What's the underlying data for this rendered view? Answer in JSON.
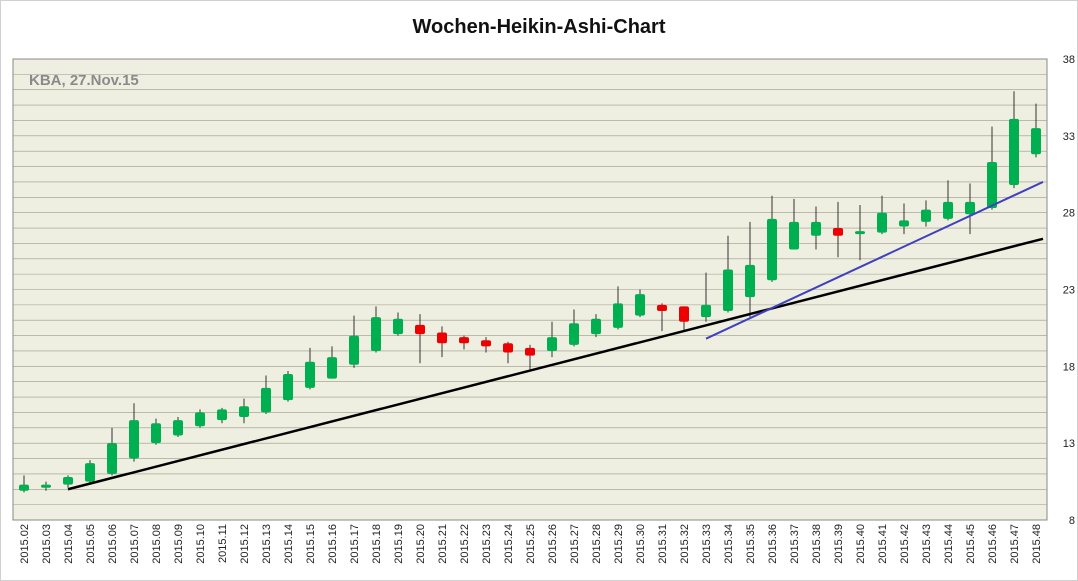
{
  "chart_data": {
    "type": "candlestick",
    "title": "Wochen-Heikin-Ashi-Chart",
    "annotation": "KBA, 27.Nov.15",
    "ylim": [
      8,
      38
    ],
    "yticks": [
      8,
      13,
      18,
      23,
      28,
      33,
      38
    ],
    "y_axis_side": "right",
    "grid": "horizontal",
    "colors": {
      "up": "#00b050",
      "down": "#ee0000",
      "wick": "#333333",
      "plot_bg": "#efefe1",
      "grid": "#9a9a8a",
      "support_line": "#000000",
      "trend_line": "#4040c0"
    },
    "categories": [
      "2015.02",
      "2015.03",
      "2015.04",
      "2015.05",
      "2015.06",
      "2015.07",
      "2015.08",
      "2015.09",
      "2015.10",
      "2015.11",
      "2015.12",
      "2015.13",
      "2015.14",
      "2015.15",
      "2015.16",
      "2015.17",
      "2015.18",
      "2015.19",
      "2015.20",
      "2015.21",
      "2015.22",
      "2015.23",
      "2015.24",
      "2015.25",
      "2015.26",
      "2015.27",
      "2015.28",
      "2015.29",
      "2015.30",
      "2015.31",
      "2015.32",
      "2015.33",
      "2015.34",
      "2015.35",
      "2015.36",
      "2015.37",
      "2015.38",
      "2015.39",
      "2015.40",
      "2015.41",
      "2015.42",
      "2015.43",
      "2015.44",
      "2015.45",
      "2015.46",
      "2015.47",
      "2015.48"
    ],
    "ohlc": [
      [
        9.9,
        10.9,
        9.8,
        10.3
      ],
      [
        10.1,
        10.5,
        9.9,
        10.3
      ],
      [
        10.3,
        10.9,
        10.1,
        10.8
      ],
      [
        10.5,
        11.9,
        10.4,
        11.7
      ],
      [
        11.0,
        14.0,
        10.9,
        13.0
      ],
      [
        12.0,
        15.6,
        11.8,
        14.5
      ],
      [
        13.0,
        14.6,
        12.9,
        14.3
      ],
      [
        13.5,
        14.7,
        13.4,
        14.5
      ],
      [
        14.1,
        15.2,
        14.0,
        15.0
      ],
      [
        14.5,
        15.3,
        14.3,
        15.2
      ],
      [
        14.7,
        15.9,
        14.3,
        15.4
      ],
      [
        15.0,
        17.4,
        14.9,
        16.6
      ],
      [
        15.8,
        17.7,
        15.7,
        17.5
      ],
      [
        16.6,
        19.2,
        16.5,
        18.3
      ],
      [
        17.2,
        19.3,
        17.2,
        18.6
      ],
      [
        18.1,
        21.3,
        17.9,
        20.0
      ],
      [
        19.0,
        21.9,
        18.9,
        21.2
      ],
      [
        20.1,
        21.5,
        20.0,
        21.1
      ],
      [
        20.7,
        21.4,
        18.2,
        20.1
      ],
      [
        20.2,
        20.6,
        18.6,
        19.5
      ],
      [
        19.9,
        20.0,
        19.1,
        19.5
      ],
      [
        19.7,
        19.9,
        18.9,
        19.3
      ],
      [
        19.5,
        19.6,
        18.2,
        18.9
      ],
      [
        19.2,
        19.4,
        17.8,
        18.7
      ],
      [
        19.0,
        20.9,
        18.6,
        19.9
      ],
      [
        19.4,
        21.7,
        19.3,
        20.8
      ],
      [
        20.1,
        21.4,
        19.9,
        21.1
      ],
      [
        20.5,
        23.2,
        20.4,
        22.1
      ],
      [
        21.3,
        23.0,
        21.2,
        22.7
      ],
      [
        22.0,
        22.1,
        20.3,
        21.6
      ],
      [
        21.9,
        21.9,
        20.3,
        20.9
      ],
      [
        21.2,
        24.1,
        20.9,
        22.0
      ],
      [
        21.6,
        26.5,
        21.5,
        24.3
      ],
      [
        22.5,
        27.4,
        21.2,
        24.6
      ],
      [
        23.6,
        29.1,
        23.5,
        27.6
      ],
      [
        25.6,
        28.9,
        25.6,
        27.4
      ],
      [
        26.5,
        28.4,
        25.6,
        27.4
      ],
      [
        27.0,
        28.7,
        25.1,
        26.5
      ],
      [
        26.6,
        28.5,
        24.9,
        26.8
      ],
      [
        26.7,
        29.1,
        26.6,
        28.0
      ],
      [
        27.1,
        28.6,
        26.6,
        27.5
      ],
      [
        27.4,
        28.8,
        27.1,
        28.2
      ],
      [
        27.6,
        30.1,
        27.5,
        28.7
      ],
      [
        27.9,
        29.9,
        26.6,
        28.7
      ],
      [
        28.3,
        33.6,
        28.2,
        31.3
      ],
      [
        29.8,
        35.9,
        29.6,
        34.1
      ],
      [
        31.8,
        35.1,
        31.6,
        33.5
      ]
    ],
    "trend_lines": [
      {
        "role": "support",
        "from": [
          "2015.04",
          10.0
        ],
        "to": [
          "2015.48",
          26.3
        ]
      },
      {
        "role": "trend",
        "from": [
          "2015.33",
          19.8
        ],
        "to": [
          "2015.48",
          30.0
        ]
      }
    ]
  }
}
